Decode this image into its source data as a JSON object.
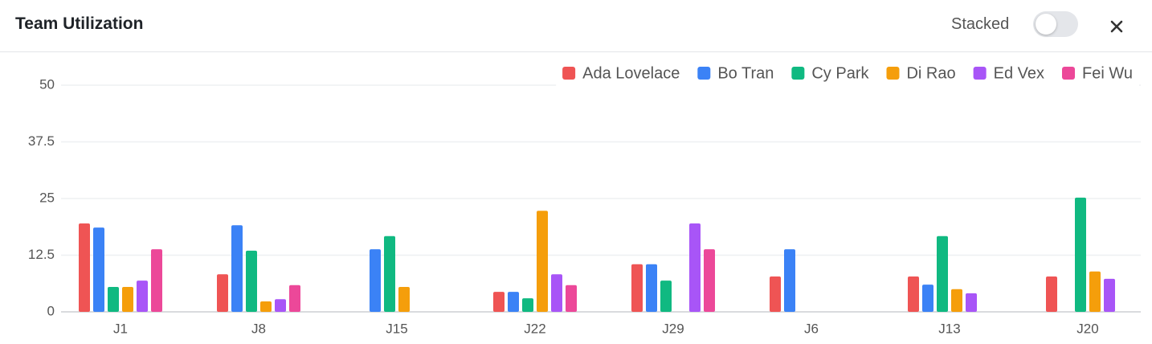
{
  "header": {
    "toggle_label": "Stacked",
    "stacked": false
  },
  "chart_data": {
    "type": "bar",
    "title": "Team Utilization",
    "categories": [
      "J1",
      "J8",
      "J15",
      "J22",
      "J29",
      "J6",
      "J13",
      "J20"
    ],
    "series": [
      {
        "name": "Ada Lovelace",
        "color": "#ef5454",
        "values": [
          19.5,
          8.3,
          0,
          4.4,
          10.5,
          7.8,
          7.8,
          7.8
        ]
      },
      {
        "name": "Bo Tran",
        "color": "#3b82f6",
        "values": [
          18.6,
          19.1,
          13.8,
          4.4,
          10.5,
          13.8,
          6,
          0
        ]
      },
      {
        "name": "Cy Park",
        "color": "#10b981",
        "values": [
          5.5,
          13.5,
          16.7,
          3,
          6.9,
          0,
          16.7,
          25.2
        ]
      },
      {
        "name": "Di Rao",
        "color": "#f59e0b",
        "values": [
          5.5,
          2.3,
          5.5,
          22.3,
          0,
          0,
          5,
          8.9
        ]
      },
      {
        "name": "Ed Vex",
        "color": "#a855f7",
        "values": [
          6.9,
          2.8,
          0,
          8.3,
          19.5,
          0,
          4.1,
          7.3
        ]
      },
      {
        "name": "Fei Wu",
        "color": "#ec4899",
        "values": [
          13.8,
          5.9,
          0,
          5.9,
          13.8,
          0,
          0,
          0
        ]
      }
    ],
    "ylim": [
      0,
      50
    ],
    "yticks": [
      0,
      12.5,
      25,
      37.5,
      50
    ],
    "grid": true,
    "legend": "top-right"
  }
}
